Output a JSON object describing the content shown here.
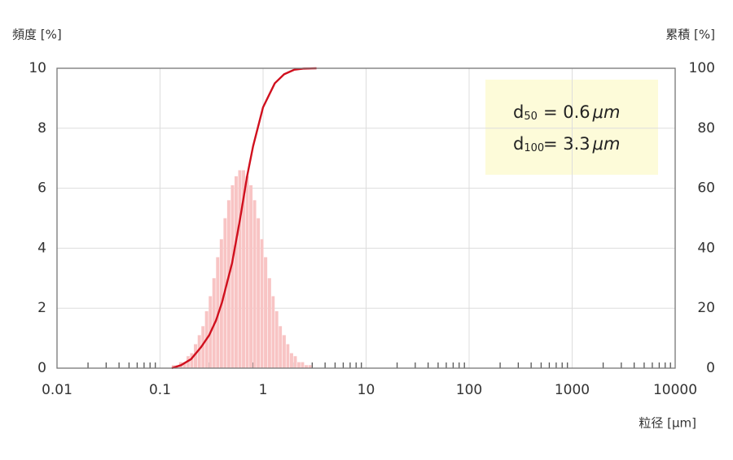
{
  "chart_data": {
    "type": "histogram",
    "y_label": "頻度 [%]",
    "y2_label": "累積 [%]",
    "x_label": "粒径 [μm]",
    "xscale": "log",
    "xlim": [
      0.01,
      10000
    ],
    "xticks": [
      0.01,
      0.1,
      1,
      10,
      100,
      1000,
      10000
    ],
    "ylim": [
      0,
      10
    ],
    "yticks": [
      0,
      2,
      4,
      6,
      8,
      10
    ],
    "y2lim": [
      0,
      100
    ],
    "y2ticks": [
      0,
      20,
      40,
      60,
      80,
      100
    ],
    "grid": true,
    "color": "#f8c4c4",
    "bins": [
      0.13,
      0.141,
      0.153,
      0.167,
      0.181,
      0.196,
      0.213,
      0.232,
      0.252,
      0.273,
      0.297,
      0.322,
      0.35,
      0.38,
      0.413,
      0.448,
      0.487,
      0.529,
      0.574,
      0.624,
      0.677,
      0.735,
      0.799,
      0.867,
      0.942,
      1.02,
      1.11,
      1.21,
      1.31,
      1.42,
      1.54,
      1.68,
      1.82,
      1.98,
      2.15,
      2.33,
      2.53,
      2.75,
      2.99,
      3.24,
      3.52
    ],
    "values": [
      0.1,
      0.1,
      0.2,
      0.2,
      0.4,
      0.5,
      0.8,
      1.1,
      1.4,
      1.9,
      2.4,
      3.0,
      3.7,
      4.3,
      5.0,
      5.6,
      6.1,
      6.4,
      6.6,
      6.6,
      6.4,
      6.1,
      5.6,
      5.0,
      4.3,
      3.7,
      3.0,
      2.4,
      1.9,
      1.4,
      1.1,
      0.8,
      0.5,
      0.4,
      0.2,
      0.2,
      0.1,
      0.1,
      0.0,
      0.0
    ],
    "cumulative": {
      "axis": "y2",
      "color": "#d0101e",
      "x": [
        0.13,
        0.16,
        0.2,
        0.25,
        0.3,
        0.35,
        0.4,
        0.5,
        0.6,
        0.7,
        0.8,
        1,
        1.3,
        1.6,
        2,
        2.5,
        3.3
      ],
      "values": [
        0,
        1,
        3,
        7,
        11,
        16,
        22,
        35,
        50,
        64,
        74,
        87,
        95,
        98,
        99.5,
        99.9,
        100
      ]
    },
    "annotations": [
      {
        "prefix": "d",
        "sub": "50",
        "text": "= 0.6",
        "unit": "μm"
      },
      {
        "prefix": "d",
        "sub": "100",
        "text": "= 3.3",
        "unit": "μm"
      }
    ]
  }
}
